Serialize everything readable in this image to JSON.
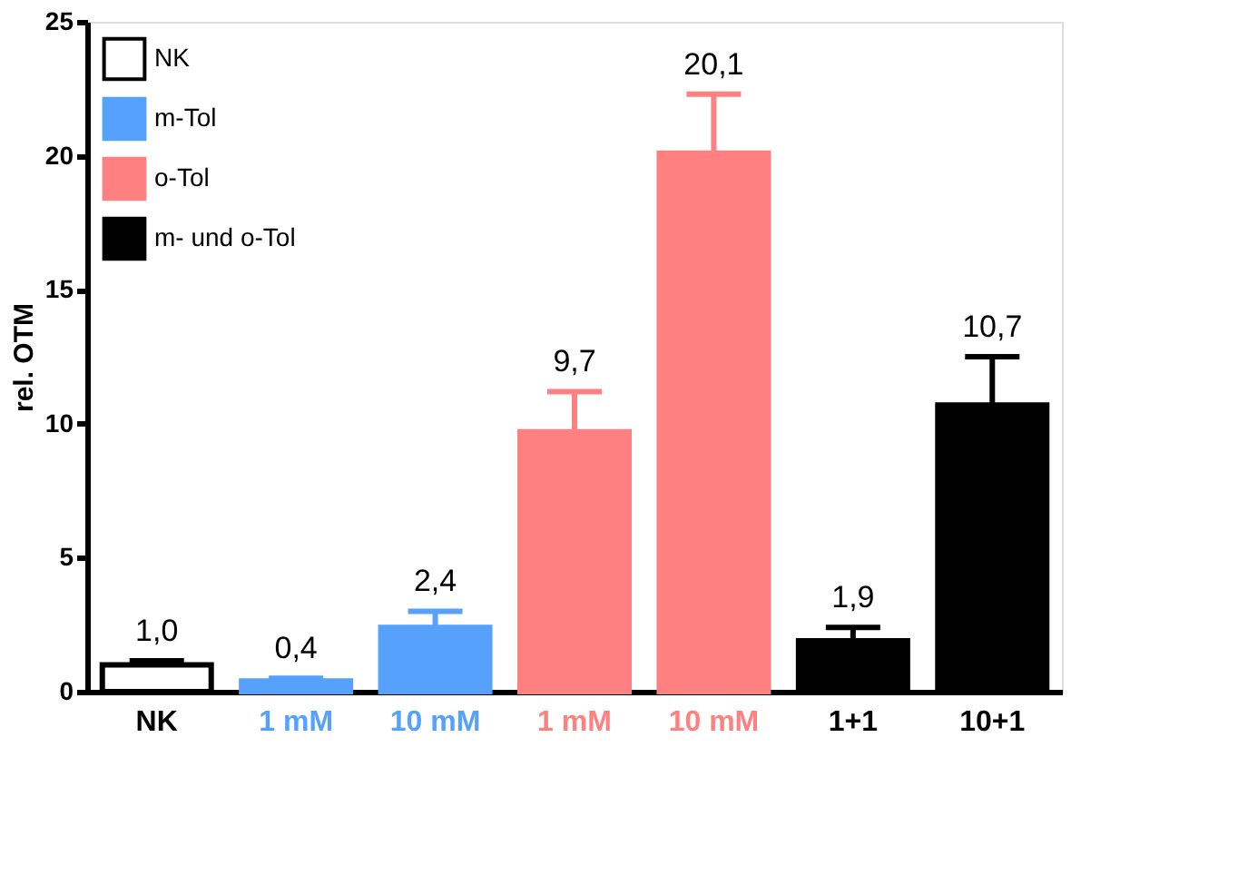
{
  "chart_data": {
    "type": "bar",
    "ylabel": "rel. OTM",
    "categories": [
      "NK",
      "1 mM",
      "10 mM",
      "1 mM",
      "10 mM",
      "1+1",
      "10+1"
    ],
    "series": [
      {
        "name": "NK",
        "color": "#ffffff",
        "values": [
          1.0,
          null,
          null,
          null,
          null,
          null,
          null
        ],
        "errors": [
          [
            1.0,
            1.15
          ],
          null,
          null,
          null,
          null,
          null,
          null
        ],
        "value_labels": [
          "1,0",
          null,
          null,
          null,
          null,
          null,
          null
        ]
      },
      {
        "name": "m-Tol",
        "color": "#55a1fb",
        "values": [
          null,
          0.4,
          2.4,
          null,
          null,
          null,
          null
        ],
        "errors": [
          null,
          [
            0.4,
            0.5
          ],
          [
            2.4,
            3.0
          ],
          null,
          null,
          null,
          null
        ],
        "value_labels": [
          null,
          "0,4",
          "2,4",
          null,
          null,
          null,
          null
        ]
      },
      {
        "name": "o-Tol",
        "color": "#ff8080",
        "values": [
          null,
          null,
          null,
          9.7,
          20.1,
          null,
          null
        ],
        "errors": [
          null,
          null,
          null,
          [
            9.7,
            11.2
          ],
          [
            20.1,
            22.3
          ],
          null,
          null
        ],
        "value_labels": [
          null,
          null,
          null,
          "9,7",
          "20,1",
          null,
          null
        ]
      },
      {
        "name": "m- und o-Tol",
        "color": "#000000",
        "values": [
          null,
          null,
          null,
          null,
          null,
          1.9,
          10.7
        ],
        "errors": [
          null,
          null,
          null,
          null,
          null,
          [
            1.9,
            2.4
          ],
          [
            10.7,
            12.5
          ]
        ],
        "value_labels": [
          null,
          null,
          null,
          null,
          null,
          "1,9",
          "10,7"
        ]
      }
    ],
    "ylim": [
      0,
      25
    ],
    "yticks": [
      0,
      5,
      10,
      15,
      20,
      25
    ],
    "grid": false,
    "legend": "top left"
  }
}
